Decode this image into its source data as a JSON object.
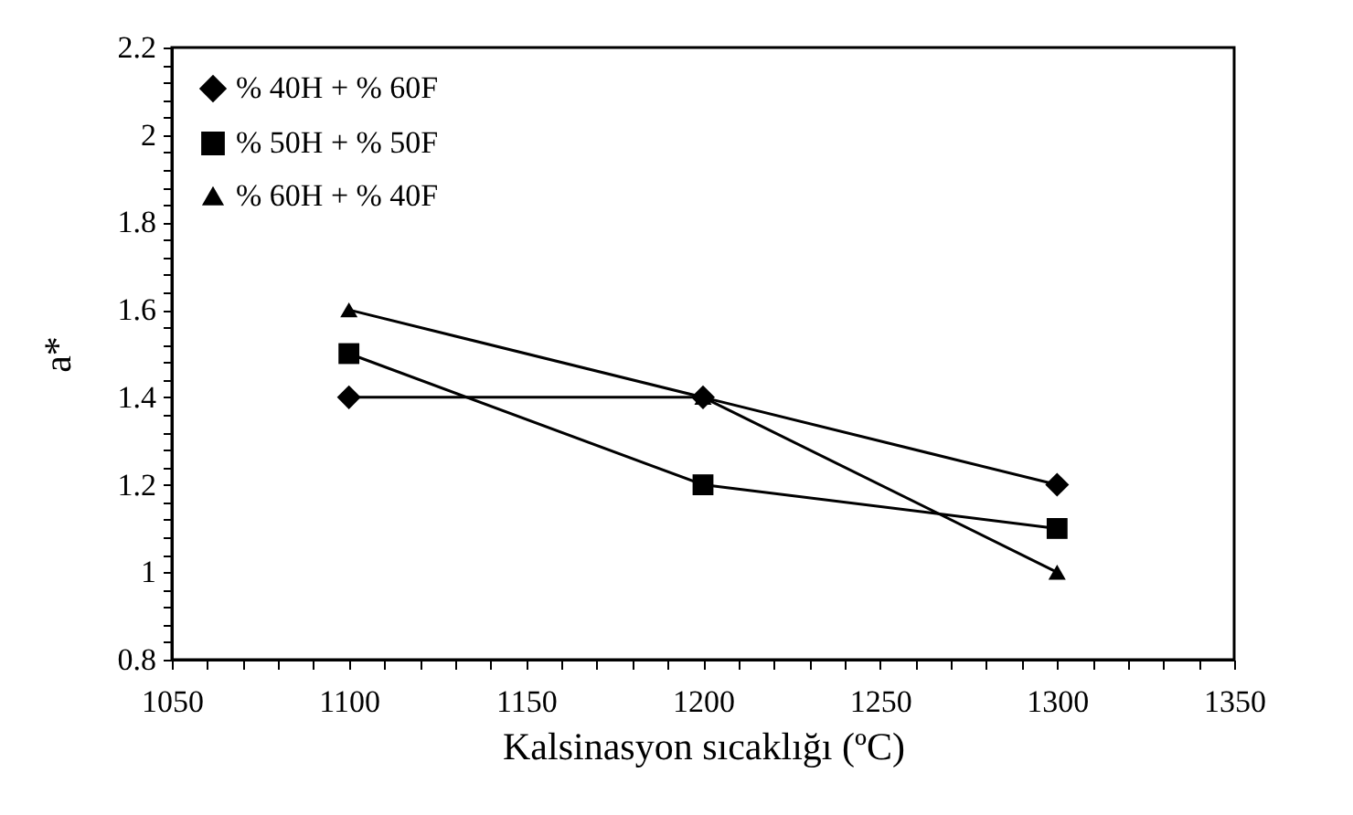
{
  "chart_data": {
    "type": "line",
    "xlabel": "Kalsinasyon sıcaklığı (ºC)",
    "ylabel": "a*",
    "x": [
      1100,
      1200,
      1300
    ],
    "series": [
      {
        "name": "% 40H + % 60F",
        "color": "#000000",
        "marker": "diamond",
        "values": [
          1.4,
          1.4,
          1.2
        ]
      },
      {
        "name": "% 50H + % 50F",
        "color": "#000000",
        "marker": "square",
        "values": [
          1.5,
          1.2,
          1.1
        ]
      },
      {
        "name": "% 60H + % 40F",
        "color": "#000000",
        "marker": "triangle",
        "values": [
          1.6,
          1.4,
          1.0
        ]
      }
    ],
    "xlim": [
      1050,
      1350
    ],
    "xticks": [
      1050,
      {
        "value": 1060,
        "label": null
      },
      {
        "value": 1070,
        "label": null
      },
      {
        "value": 1080,
        "label": null
      },
      {
        "value": 1090,
        "label": null
      },
      1100,
      {
        "value": 1110,
        "label": null
      },
      {
        "value": 1120,
        "label": null
      },
      {
        "value": 1130,
        "label": null
      },
      {
        "value": 1140,
        "label": null
      },
      1150,
      {
        "value": 1160,
        "label": null
      },
      {
        "value": 1170,
        "label": null
      },
      {
        "value": 1180,
        "label": null
      },
      {
        "value": 1190,
        "label": null
      },
      1200,
      {
        "value": 1210,
        "label": null
      },
      {
        "value": 1220,
        "label": null
      },
      {
        "value": 1230,
        "label": null
      },
      {
        "value": 1240,
        "label": null
      },
      1250,
      {
        "value": 1260,
        "label": null
      },
      {
        "value": 1270,
        "label": null
      },
      {
        "value": 1280,
        "label": null
      },
      {
        "value": 1290,
        "label": null
      },
      1300,
      {
        "value": 1310,
        "label": null
      },
      {
        "value": 1320,
        "label": null
      },
      {
        "value": 1330,
        "label": null
      },
      {
        "value": 1340,
        "label": null
      },
      1350
    ],
    "ylim": [
      0.8,
      2.2
    ],
    "yticks": [
      0.8,
      {
        "value": 0.84,
        "label": null
      },
      {
        "value": 0.88,
        "label": null
      },
      {
        "value": 0.92,
        "label": null
      },
      {
        "value": 0.96,
        "label": null
      },
      1,
      {
        "value": 1.04,
        "label": null
      },
      {
        "value": 1.08,
        "label": null
      },
      {
        "value": 1.12,
        "label": null
      },
      {
        "value": 1.16,
        "label": null
      },
      1.2,
      {
        "value": 1.24,
        "label": null
      },
      {
        "value": 1.28,
        "label": null
      },
      {
        "value": 1.32,
        "label": null
      },
      {
        "value": 1.36,
        "label": null
      },
      1.4,
      {
        "value": 1.44,
        "label": null
      },
      {
        "value": 1.48,
        "label": null
      },
      {
        "value": 1.52,
        "label": null
      },
      {
        "value": 1.56,
        "label": null
      },
      1.6,
      {
        "value": 1.64,
        "label": null
      },
      {
        "value": 1.68,
        "label": null
      },
      {
        "value": 1.72,
        "label": null
      },
      {
        "value": 1.76,
        "label": null
      },
      1.8,
      {
        "value": 1.84,
        "label": null
      },
      {
        "value": 1.88,
        "label": null
      },
      {
        "value": 1.92,
        "label": null
      },
      {
        "value": 1.96,
        "label": null
      },
      2,
      {
        "value": 2.04,
        "label": null
      },
      {
        "value": 2.08,
        "label": null
      },
      {
        "value": 2.12,
        "label": null
      },
      {
        "value": 2.16,
        "label": null
      },
      2.2
    ],
    "grid": false,
    "legend": "top left",
    "line_style": "solid"
  }
}
